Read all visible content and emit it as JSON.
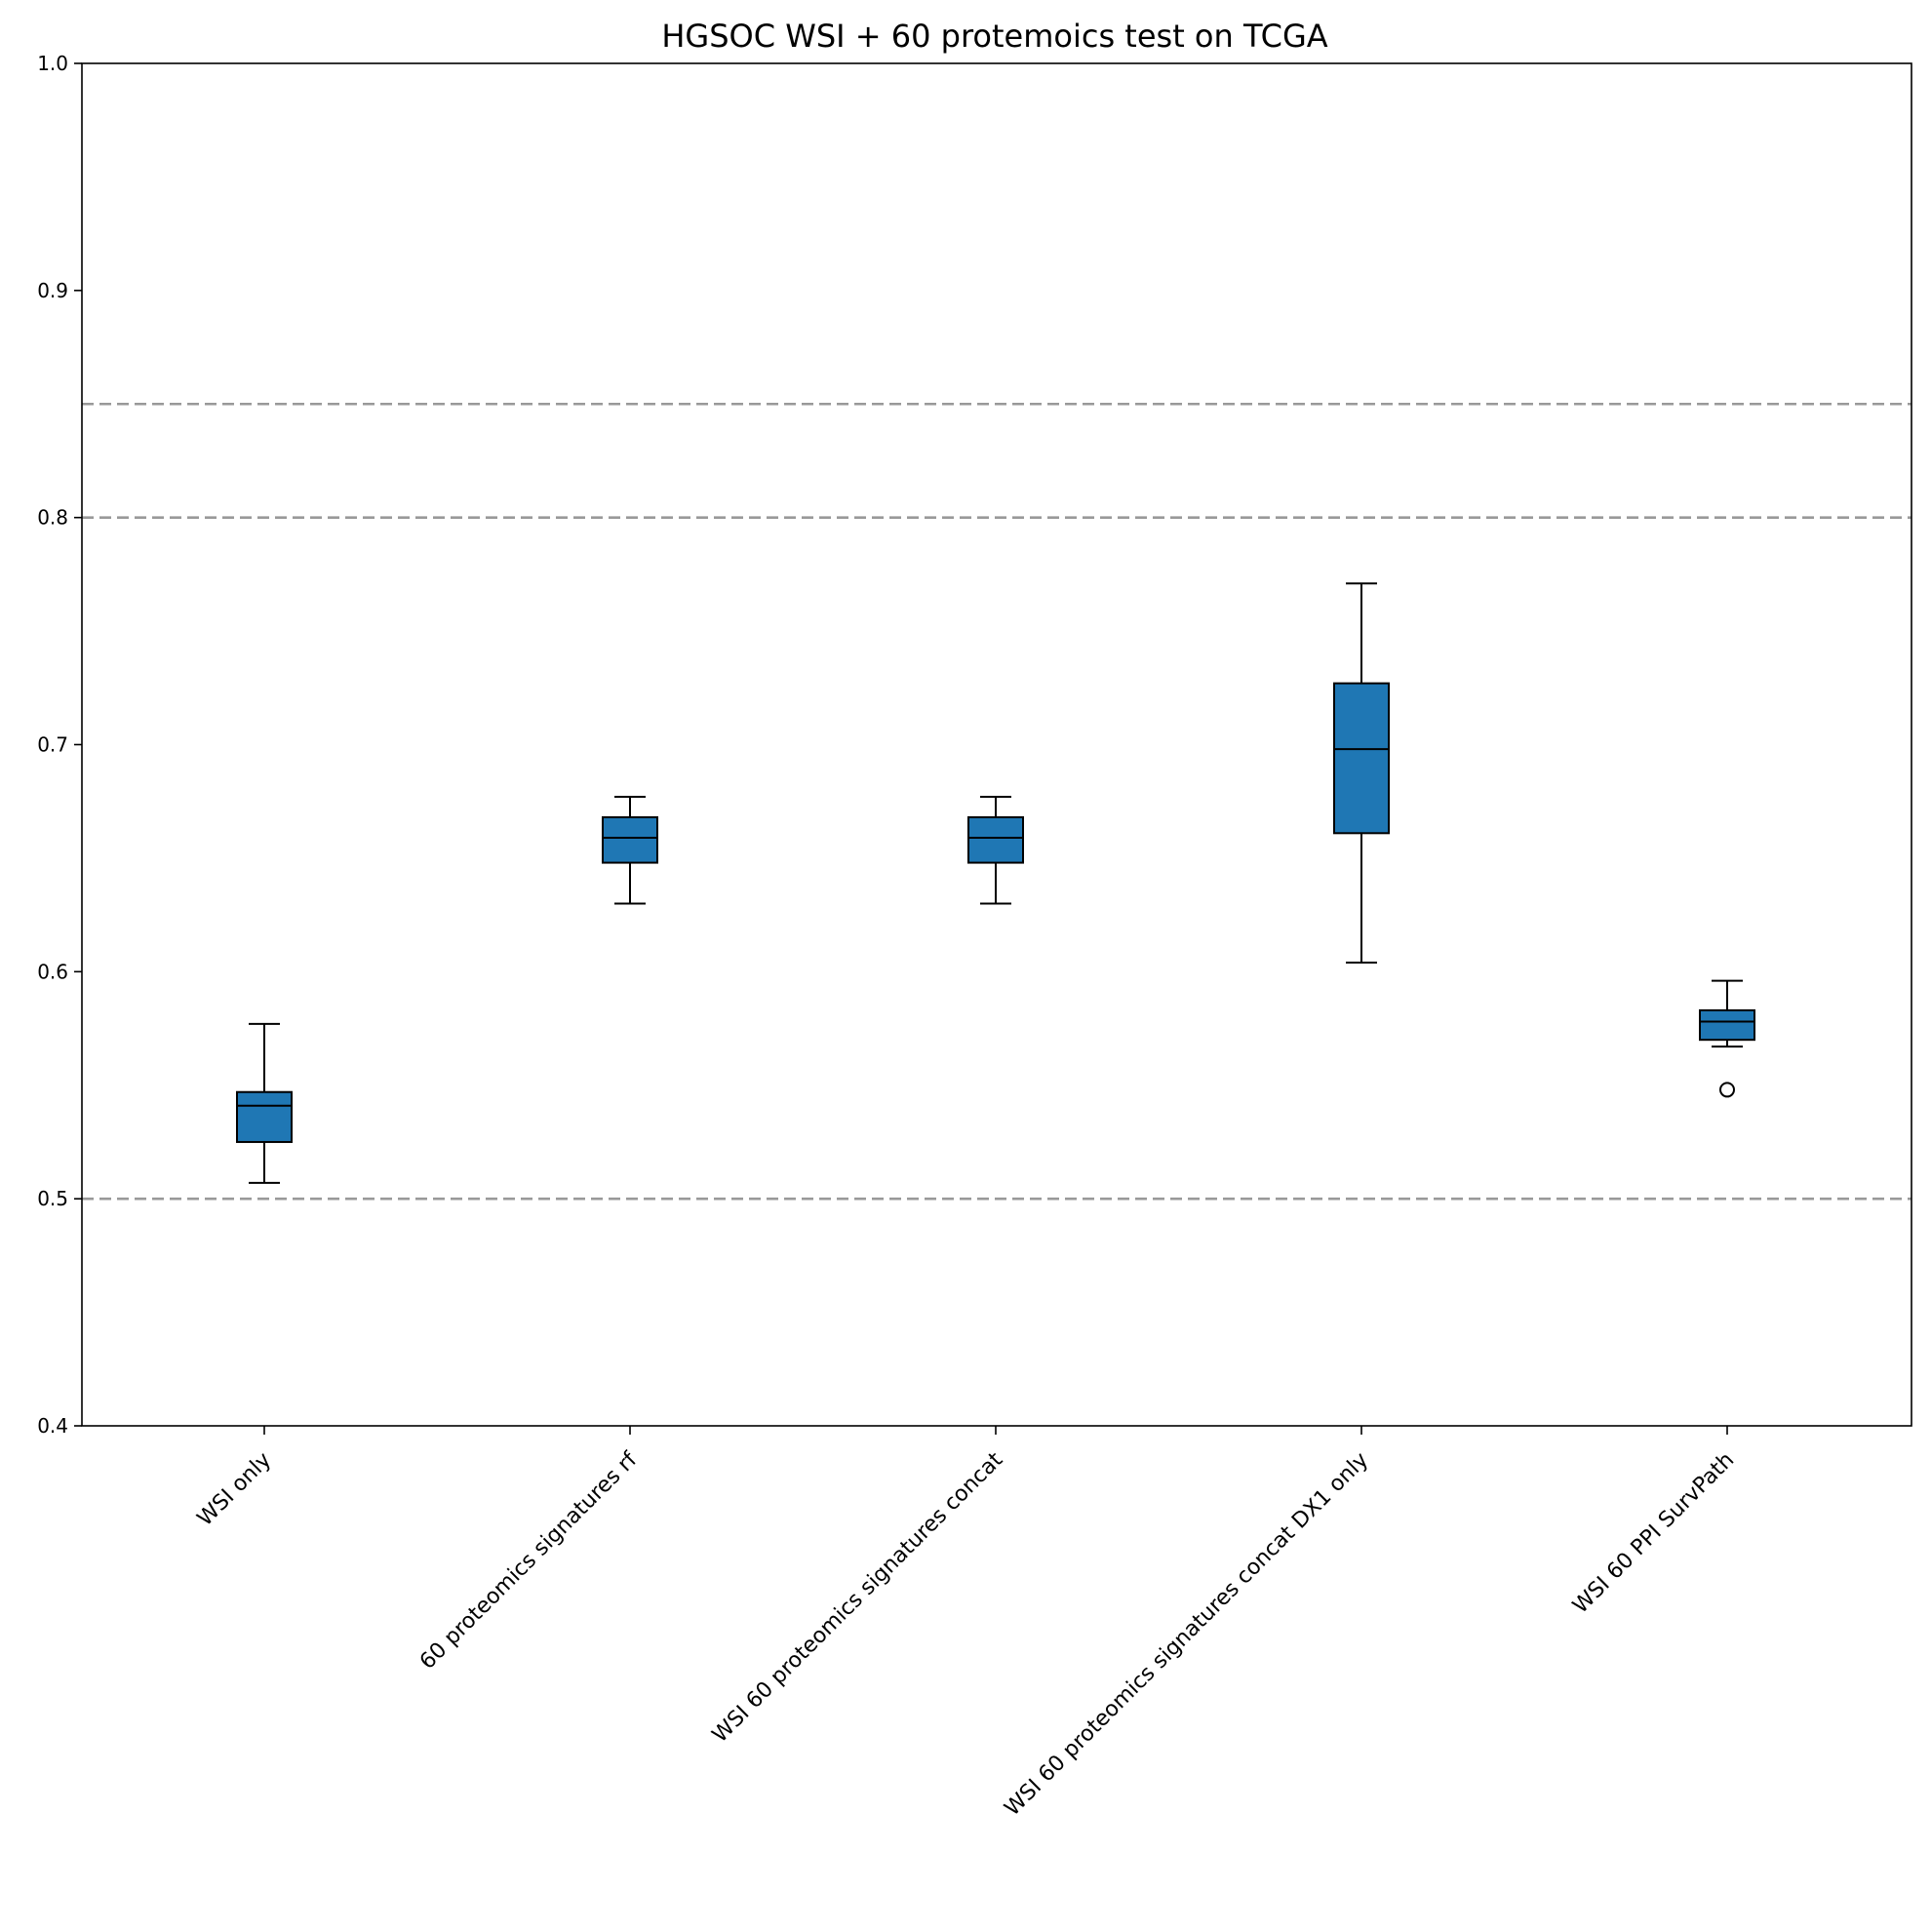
{
  "chart_data": {
    "type": "box",
    "title": "HGSOC WSI + 60 protemoics test on TCGA",
    "xlabel": "",
    "ylabel": "",
    "ylim": [
      0.4,
      1.0
    ],
    "yticks": [
      "0.4",
      "0.5",
      "0.6",
      "0.7",
      "0.8",
      "0.9",
      "1.0"
    ],
    "reference_lines": [
      0.5,
      0.8,
      0.85
    ],
    "grid": false,
    "box_color": "#1f77b4",
    "reference_line_color": "#999999",
    "categories": [
      "WSI only",
      "60 proteomics signatures rf",
      "WSI 60 proteomics signatures concat",
      "WSI 60 proteomics signatures concat DX1 only",
      "WSI 60 PPI SurvPath"
    ],
    "boxes": [
      {
        "whisker_low": 0.507,
        "q1": 0.525,
        "median": 0.541,
        "q3": 0.547,
        "whisker_high": 0.577,
        "outliers": []
      },
      {
        "whisker_low": 0.63,
        "q1": 0.648,
        "median": 0.659,
        "q3": 0.668,
        "whisker_high": 0.677,
        "outliers": []
      },
      {
        "whisker_low": 0.63,
        "q1": 0.648,
        "median": 0.659,
        "q3": 0.668,
        "whisker_high": 0.677,
        "outliers": []
      },
      {
        "whisker_low": 0.604,
        "q1": 0.661,
        "median": 0.698,
        "q3": 0.727,
        "whisker_high": 0.771,
        "outliers": []
      },
      {
        "whisker_low": 0.567,
        "q1": 0.57,
        "median": 0.578,
        "q3": 0.583,
        "whisker_high": 0.596,
        "outliers": [
          0.548
        ]
      }
    ]
  }
}
